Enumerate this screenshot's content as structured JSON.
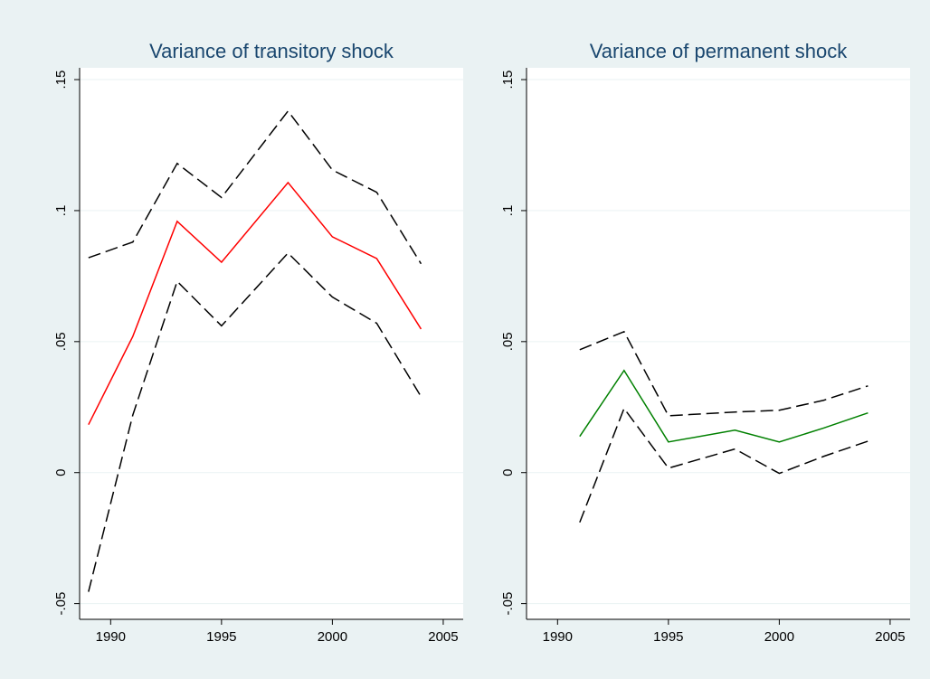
{
  "chart_data": [
    {
      "type": "line",
      "title": "Variance of transitory shock",
      "x": [
        1989,
        1991,
        1993,
        1995,
        1998,
        2000,
        2002,
        2004
      ],
      "series": [
        {
          "color": "#000000",
          "dash": true,
          "values": [
            0.082,
            0.088,
            0.118,
            0.105,
            0.138,
            0.1155,
            0.107,
            0.0797
          ]
        },
        {
          "color": "#ff0000",
          "dash": false,
          "values": [
            0.0183,
            0.052,
            0.0959,
            0.0803,
            0.1107,
            0.09,
            0.0817,
            0.0548
          ]
        },
        {
          "color": "#000000",
          "dash": true,
          "values": [
            -0.0455,
            0.022,
            0.073,
            0.056,
            0.0838,
            0.067,
            0.057,
            0.029
          ]
        }
      ],
      "xlim": [
        1988.6,
        2005.9
      ],
      "xticks": [
        1990,
        1995,
        2000,
        2005
      ],
      "ylim": [
        -0.056,
        0.1545
      ],
      "yticks": [
        {
          "value": -0.05,
          "label": "-.05"
        },
        0,
        {
          "value": 0.05,
          "label": ".05"
        },
        {
          "value": 0.1,
          "label": ".1"
        },
        {
          "value": 0.15,
          "label": ".15"
        }
      ],
      "grid": true
    },
    {
      "type": "line",
      "title": "Variance of permanent shock",
      "x": [
        1991,
        1993,
        1995,
        1998,
        2000,
        2002,
        2004
      ],
      "series": [
        {
          "color": "#000000",
          "dash": true,
          "values": [
            0.0469,
            0.0538,
            0.0217,
            0.0231,
            0.0238,
            0.0276,
            0.0331
          ]
        },
        {
          "color": "#008000",
          "dash": false,
          "values": [
            0.0138,
            0.039,
            0.0117,
            0.0162,
            0.0117,
            0.017,
            0.0228
          ]
        },
        {
          "color": "#000000",
          "dash": true,
          "values": [
            -0.019,
            0.0245,
            0.0017,
            0.009,
            -0.0003,
            0.0062,
            0.012
          ]
        }
      ],
      "xlim": [
        1988.6,
        2005.9
      ],
      "xticks": [
        1990,
        1995,
        2000,
        2005
      ],
      "ylim": [
        -0.056,
        0.1545
      ],
      "yticks": [
        {
          "value": -0.05,
          "label": "-.05"
        },
        0,
        {
          "value": 0.05,
          "label": ".05"
        },
        {
          "value": 0.1,
          "label": ".1"
        },
        {
          "value": 0.15,
          "label": ".15"
        }
      ],
      "grid": true
    }
  ]
}
